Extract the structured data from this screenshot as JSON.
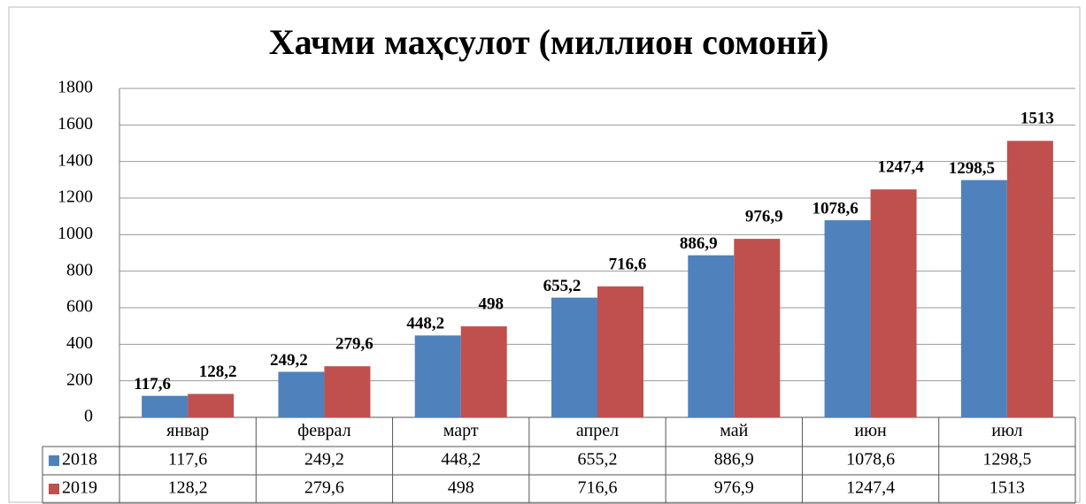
{
  "chart_data": {
    "type": "bar",
    "title": "Хачми маҳсулот (миллион сомонӣ)",
    "categories": [
      "январ",
      "феврал",
      "март",
      "апрел",
      "май",
      "июн",
      "июл"
    ],
    "series": [
      {
        "name": "2018",
        "color": "#4f81bd",
        "values": [
          117.6,
          249.2,
          448.2,
          655.2,
          886.9,
          1078.6,
          1298.5
        ],
        "value_labels": [
          "117,6",
          "249,2",
          "448,2",
          "655,2",
          "886,9",
          "1078,6",
          "1298,5"
        ]
      },
      {
        "name": "2019",
        "color": "#c0504d",
        "values": [
          128.2,
          279.6,
          498,
          716.6,
          976.9,
          1247.4,
          1513
        ],
        "value_labels": [
          "128,2",
          "279,6",
          "498",
          "716,6",
          "976,9",
          "1247,4",
          "1513"
        ]
      }
    ],
    "ylim": [
      0,
      1800
    ],
    "yticks": [
      0,
      200,
      400,
      600,
      800,
      1000,
      1200,
      1400,
      1600,
      1800
    ],
    "grid": true,
    "legend": "table"
  }
}
